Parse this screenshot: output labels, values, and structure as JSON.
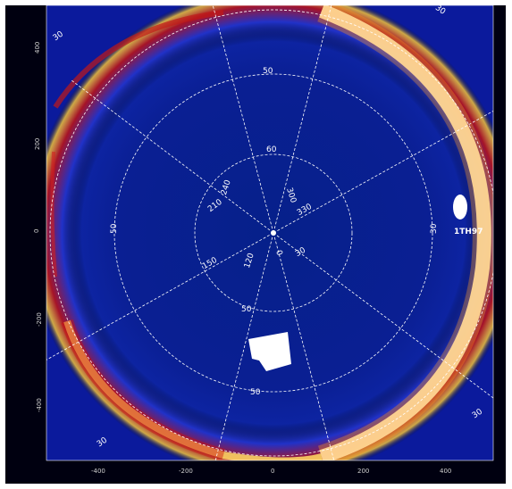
{
  "map": {
    "colors": {
      "background": "#000010",
      "field": "#0b1a9c",
      "grid": "#ffffff",
      "tick": "#cfcfcf"
    },
    "polar_grid": {
      "latitude_labels": [
        "50",
        "60",
        "60",
        "50",
        "50",
        "30",
        "50",
        "30",
        "30",
        "30",
        "30"
      ],
      "longitude_labels": [
        "240",
        "300",
        "210",
        "330",
        "150",
        "30",
        "120",
        "0"
      ]
    },
    "axes": {
      "x_ticks": [
        "-400",
        "-200",
        "0",
        "200",
        "400"
      ],
      "y_ticks": [
        "400",
        "200",
        "0",
        "-200",
        "-400"
      ]
    },
    "marker_label": "1TH97"
  }
}
